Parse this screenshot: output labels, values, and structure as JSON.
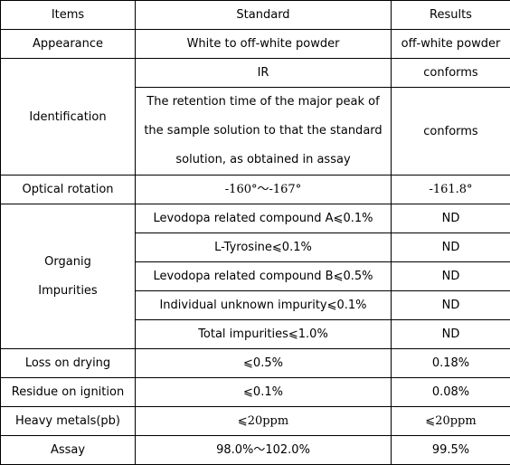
{
  "headers": {
    "items": "Items",
    "standard": "Standard",
    "results": "Results"
  },
  "rows": {
    "appearance": {
      "item": "Appearance",
      "standard": "White to off-white powder",
      "result": "off-white powder"
    },
    "identification": {
      "item": "Identification",
      "standard_1": "IR",
      "result_1": "conforms",
      "standard_2": "The retention time of the major peak of the sample solution to that the standard solution, as obtained in assay",
      "result_2": "conforms"
    },
    "optical_rotation": {
      "item": "Optical rotation",
      "standard": "-160°～-167°",
      "result": "-161.8°"
    },
    "organic_impurities": {
      "item_line1": "Organig",
      "item_line2": "Impurities",
      "sub": [
        {
          "standard": "Levodopa related compound A⩽0.1%",
          "result": "ND"
        },
        {
          "standard": "L-Tyrosine⩽0.1%",
          "result": "ND"
        },
        {
          "standard": "Levodopa related compound B⩽0.5%",
          "result": "ND"
        },
        {
          "standard": "Individual unknown impurity⩽0.1%",
          "result": "ND"
        },
        {
          "standard": "Total impurities⩽1.0%",
          "result": "ND"
        }
      ]
    },
    "loss_on_drying": {
      "item": "Loss on drying",
      "standard": "⩽0.5%",
      "result": "0.18%"
    },
    "residue_on_ignition": {
      "item": "Residue on ignition",
      "standard": "⩽0.1%",
      "result": "0.08%"
    },
    "heavy_metals": {
      "item": "Heavy metals(pb)",
      "standard": "⩽20ppm",
      "result": "⩽20ppm"
    },
    "assay": {
      "item": "Assay",
      "standard": "98.0%～102.0%",
      "result": "99.5%"
    }
  }
}
